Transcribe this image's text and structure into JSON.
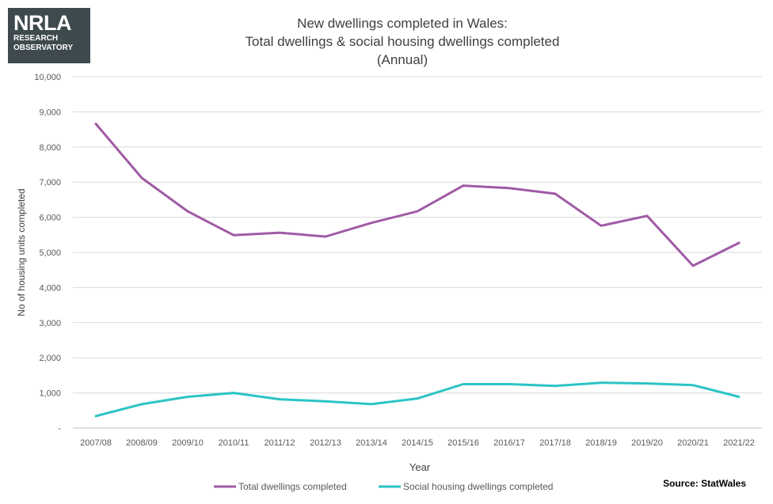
{
  "logo": {
    "mark": "NRLA",
    "line1": "RESEARCH",
    "line2": "OBSERVATORY"
  },
  "title_lines": [
    "New dwellings completed in Wales:",
    "Total dwellings & social housing dwellings completed",
    "(Annual)"
  ],
  "source": "Source: StatWales",
  "chart_data": {
    "type": "line",
    "title": "New dwellings completed in Wales: Total dwellings & social housing dwellings completed (Annual)",
    "xlabel": "Year",
    "ylabel": "No of housing units completed",
    "ylim": [
      0,
      10000
    ],
    "yticks": [
      0,
      1000,
      2000,
      3000,
      4000,
      5000,
      6000,
      7000,
      8000,
      9000,
      10000
    ],
    "ytick_labels": [
      "-",
      "1,000",
      "2,000",
      "3,000",
      "4,000",
      "5,000",
      "6,000",
      "7,000",
      "8,000",
      "9,000",
      "10,000"
    ],
    "grid": true,
    "legend_position": "bottom",
    "categories": [
      "2007/08",
      "2008/09",
      "2009/10",
      "2010/11",
      "2011/12",
      "2012/13",
      "2013/14",
      "2014/15",
      "2015/16",
      "2016/17",
      "2017/18",
      "2018/19",
      "2019/20",
      "2020/21",
      "2021/22"
    ],
    "series": [
      {
        "name": "Total dwellings completed",
        "color": "#a05ba5",
        "values": [
          8660,
          7120,
          6170,
          5490,
          5560,
          5450,
          5840,
          6170,
          6900,
          6830,
          6670,
          5760,
          6040,
          4620,
          5270
        ]
      },
      {
        "name": "Social housing dwellings completed",
        "color": "#2cc4c4",
        "values": [
          340,
          680,
          890,
          1000,
          820,
          760,
          680,
          840,
          1250,
          1250,
          1200,
          1290,
          1270,
          1220,
          890
        ]
      }
    ]
  }
}
